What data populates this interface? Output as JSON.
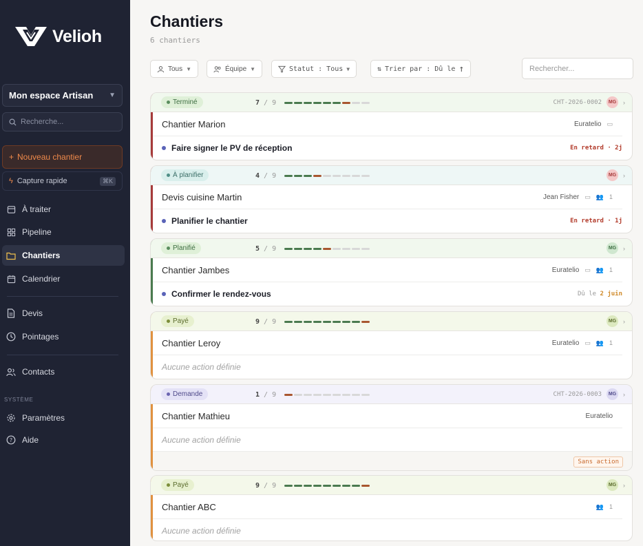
{
  "brand": {
    "name": "Velioh"
  },
  "sidebar": {
    "workspace": "Mon espace Artisan",
    "search_placeholder": "Recherche...",
    "new_button": "Nouveau chantier",
    "capture_label": "Capture rapide",
    "capture_kbd": "⌘K",
    "items": [
      {
        "label": "À traiter",
        "icon": "inbox-icon"
      },
      {
        "label": "Pipeline",
        "icon": "grid-icon"
      },
      {
        "label": "Chantiers",
        "icon": "folder-icon",
        "active": true
      },
      {
        "label": "Calendrier",
        "icon": "calendar-icon"
      },
      {
        "label": "Devis",
        "icon": "document-icon"
      },
      {
        "label": "Pointages",
        "icon": "clock-icon"
      },
      {
        "label": "Contacts",
        "icon": "users-icon"
      },
      {
        "label": "Paramètres",
        "icon": "gear-icon"
      },
      {
        "label": "Aide",
        "icon": "help-icon"
      }
    ],
    "system_label": "SYSTÈME"
  },
  "header": {
    "title": "Chantiers",
    "subtitle": "6 chantiers"
  },
  "filters": {
    "person": "Tous",
    "team": "Équipe",
    "status": "Statut : Tous",
    "sort": "Trier par : Dû le",
    "search_placeholder": "Rechercher..."
  },
  "colors": {
    "accent_red": "#a63a3a",
    "accent_green": "#4a7a4f",
    "accent_orange": "#e0913f",
    "progress_done": "#4a7a4f",
    "progress_current": "#a8562f"
  },
  "cards": [
    {
      "status": "Terminé",
      "status_tone": "green",
      "step": "7",
      "total": "9",
      "ref": "CHT-2026-0002",
      "avatar": "MG",
      "avatar_tone": "red",
      "accent": "#a63a3a",
      "title": "Chantier Marion",
      "client": "Euratelio",
      "show_notes": true,
      "assignees": "",
      "action": "Faire signer le PV de réception",
      "due": "En retard · 2j",
      "due_tone": "late"
    },
    {
      "status": "À planifier",
      "status_tone": "teal",
      "step": "4",
      "total": "9",
      "ref": "",
      "avatar": "MG",
      "avatar_tone": "red",
      "accent": "#a63a3a",
      "title": "Devis cuisine Martin",
      "client": "Jean Fisher",
      "show_notes": true,
      "assignees": "1",
      "action": "Planifier le chantier",
      "due": "En retard · 1j",
      "due_tone": "late"
    },
    {
      "status": "Planifié",
      "status_tone": "green",
      "step": "5",
      "total": "9",
      "ref": "",
      "avatar": "MG",
      "avatar_tone": "green",
      "accent": "#4a7a4f",
      "title": "Chantier Jambes",
      "client": "Euratelio",
      "show_notes": true,
      "assignees": "1",
      "action": "Confirmer le rendez-vous",
      "due_prefix": "Dû le",
      "due": "2 juin",
      "due_tone": "soon"
    },
    {
      "status": "Payé",
      "status_tone": "olive",
      "step": "9",
      "total": "9",
      "ref": "",
      "avatar": "MG",
      "avatar_tone": "olive",
      "accent": "#e0913f",
      "title": "Chantier Leroy",
      "client": "Euratelio",
      "show_notes": true,
      "assignees": "1",
      "action": "",
      "none_label": "Aucune action définie"
    },
    {
      "status": "Demande",
      "status_tone": "violet",
      "step": "1",
      "total": "9",
      "ref": "CHT-2026-0003",
      "avatar": "MG",
      "avatar_tone": "violet",
      "accent": "#e0913f",
      "title": "Chantier Mathieu",
      "client": "Euratelio",
      "show_notes": false,
      "assignees": "",
      "action": "",
      "none_label": "Aucune action définie",
      "footer_badge": "Sans action"
    },
    {
      "status": "Payé",
      "status_tone": "olive",
      "step": "9",
      "total": "9",
      "ref": "",
      "avatar": "MG",
      "avatar_tone": "olive",
      "accent": "#e0913f",
      "title": "Chantier ABC",
      "client": "",
      "show_notes": false,
      "assignees": "1",
      "action": "",
      "none_label": "Aucune action définie"
    }
  ]
}
